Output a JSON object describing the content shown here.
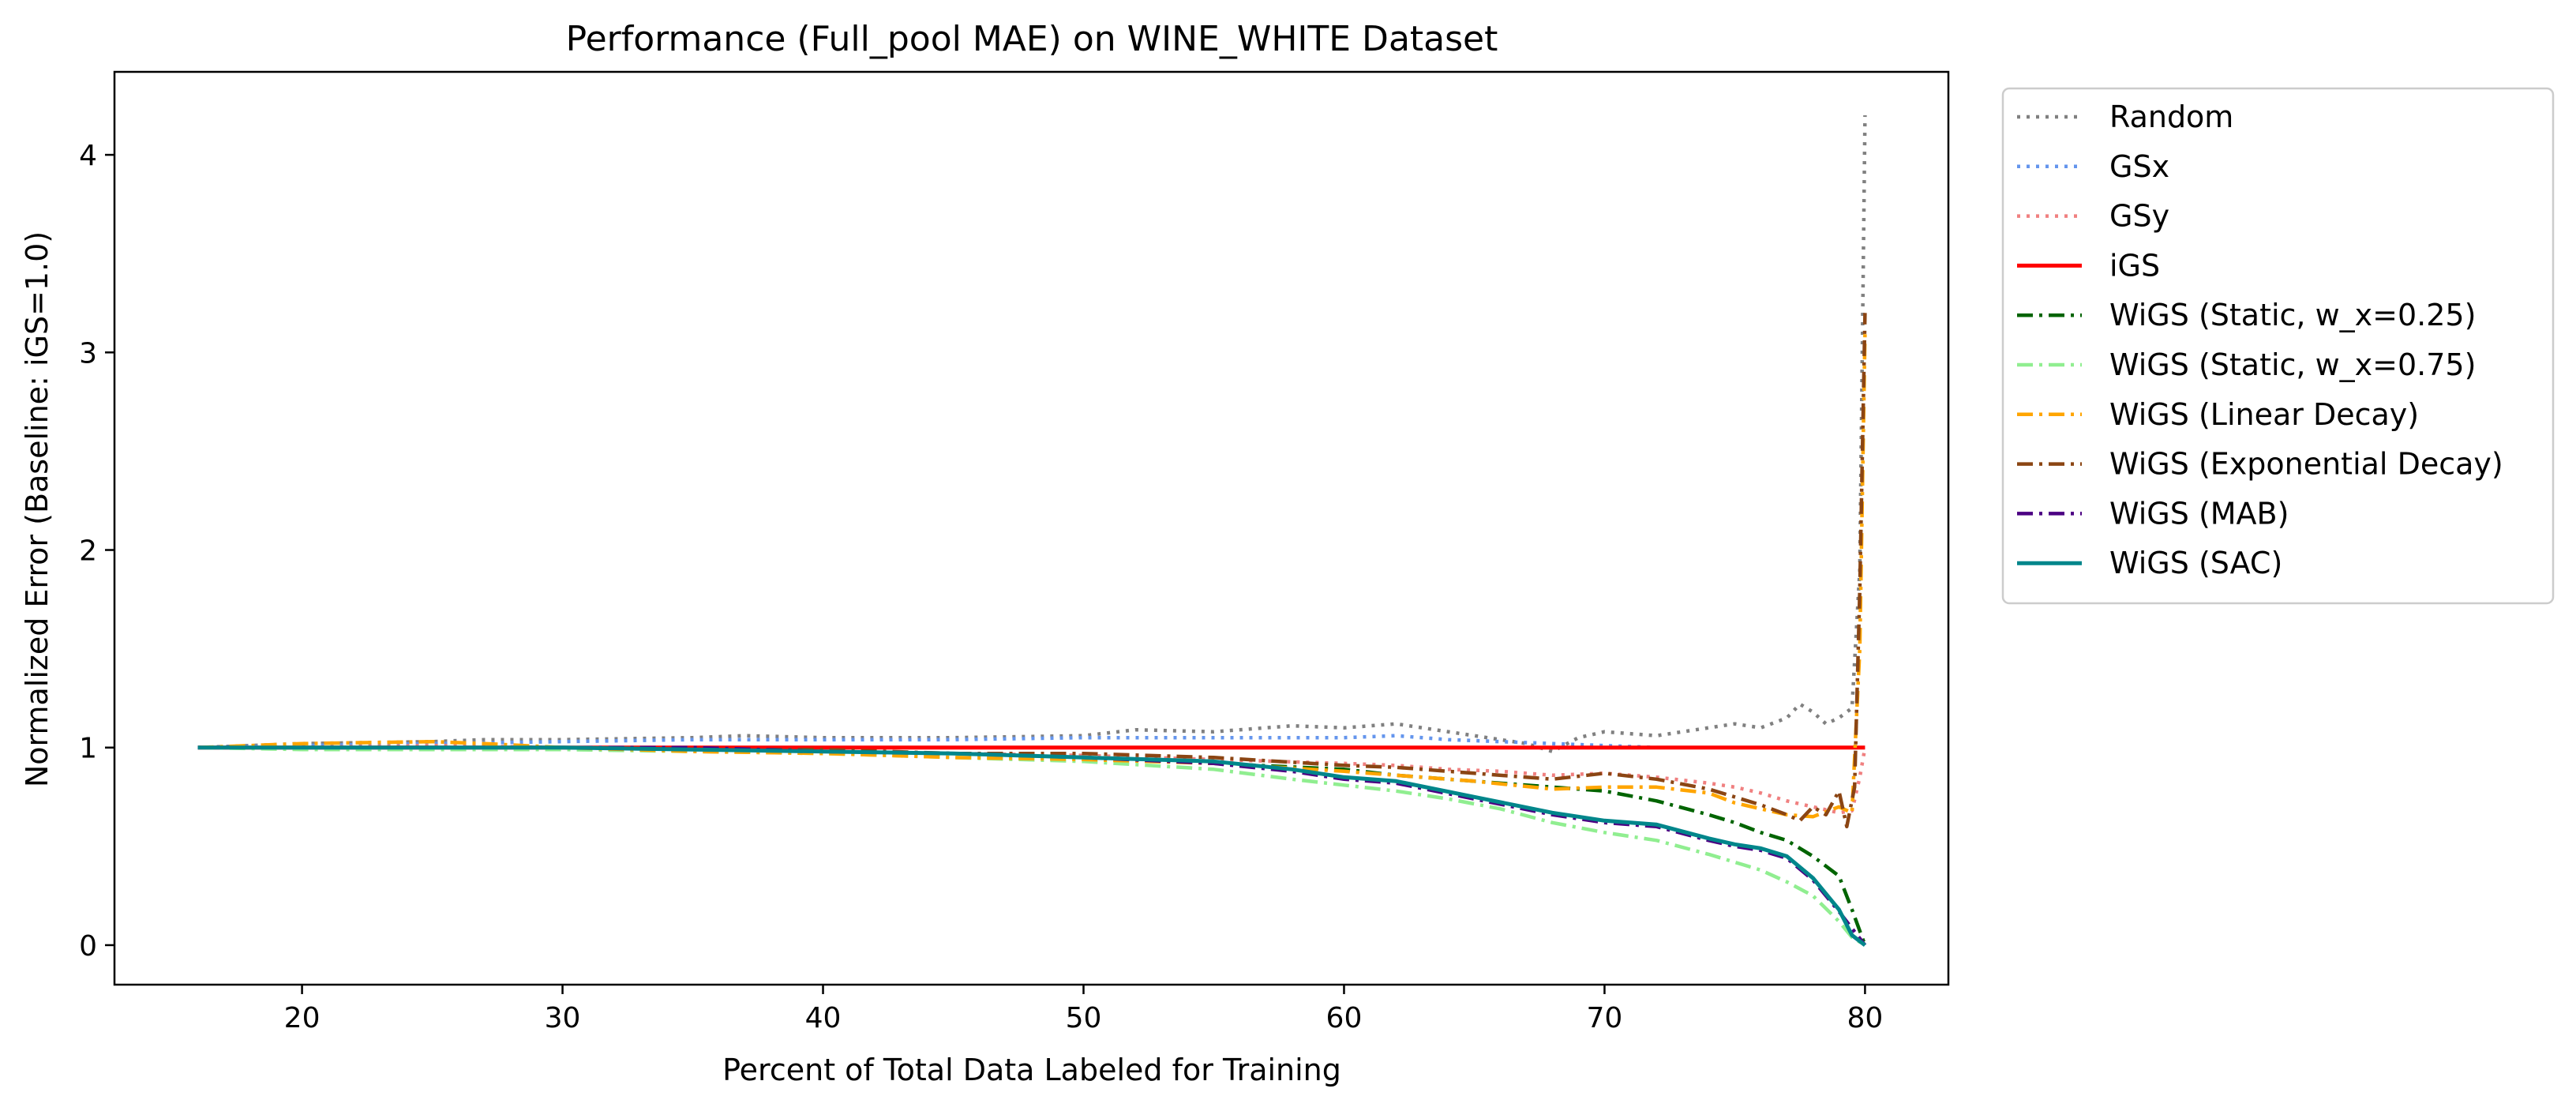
{
  "chart_data": {
    "type": "line",
    "title": "Performance (Full_pool MAE) on WINE_WHITE Dataset",
    "xlabel": "Percent of Total Data Labeled for Training",
    "ylabel": "Normalized Error (Baseline: iGS=1.0)",
    "xlim": [
      12.8,
      83.2
    ],
    "ylim": [
      -0.2,
      4.42
    ],
    "xticks": [
      20,
      30,
      40,
      50,
      60,
      70,
      80
    ],
    "yticks": [
      0,
      1,
      2,
      3,
      4
    ],
    "grid": false,
    "legend_position": "outside upper right",
    "series": [
      {
        "name": "Random",
        "color": "#808080",
        "dash": "dotted",
        "points": [
          [
            16,
            1.0
          ],
          [
            18,
            1.01
          ],
          [
            20,
            1.02
          ],
          [
            25,
            1.03
          ],
          [
            27,
            1.04
          ],
          [
            30,
            1.04
          ],
          [
            35,
            1.05
          ],
          [
            37,
            1.06
          ],
          [
            40,
            1.05
          ],
          [
            45,
            1.05
          ],
          [
            50,
            1.06
          ],
          [
            52,
            1.09
          ],
          [
            55,
            1.08
          ],
          [
            57,
            1.1
          ],
          [
            58,
            1.11
          ],
          [
            60,
            1.1
          ],
          [
            62,
            1.12
          ],
          [
            63,
            1.1
          ],
          [
            65,
            1.06
          ],
          [
            67,
            1.02
          ],
          [
            68,
            0.98
          ],
          [
            69,
            1.05
          ],
          [
            70,
            1.08
          ],
          [
            72,
            1.06
          ],
          [
            74,
            1.1
          ],
          [
            75,
            1.12
          ],
          [
            76,
            1.1
          ],
          [
            77,
            1.15
          ],
          [
            77.5,
            1.22
          ],
          [
            78,
            1.18
          ],
          [
            78.5,
            1.12
          ],
          [
            79,
            1.15
          ],
          [
            79.5,
            1.2
          ],
          [
            79.8,
            1.9
          ],
          [
            80,
            4.2
          ]
        ]
      },
      {
        "name": "GSx",
        "color": "#6495ED",
        "dash": "dotted",
        "points": [
          [
            16,
            1.0
          ],
          [
            20,
            1.01
          ],
          [
            25,
            1.02
          ],
          [
            30,
            1.03
          ],
          [
            35,
            1.04
          ],
          [
            40,
            1.04
          ],
          [
            45,
            1.04
          ],
          [
            50,
            1.05
          ],
          [
            55,
            1.05
          ],
          [
            60,
            1.05
          ],
          [
            62,
            1.06
          ],
          [
            64,
            1.04
          ],
          [
            66,
            1.03
          ],
          [
            68,
            1.02
          ],
          [
            70,
            1.01
          ],
          [
            72,
            1.0
          ],
          [
            75,
            1.0
          ],
          [
            78,
            1.0
          ],
          [
            80,
            1.0
          ]
        ]
      },
      {
        "name": "GSy",
        "color": "#F08080",
        "dash": "dotted",
        "points": [
          [
            16,
            1.0
          ],
          [
            20,
            1.0
          ],
          [
            25,
            1.01
          ],
          [
            30,
            1.0
          ],
          [
            35,
            0.99
          ],
          [
            40,
            0.98
          ],
          [
            45,
            0.97
          ],
          [
            50,
            0.96
          ],
          [
            55,
            0.94
          ],
          [
            60,
            0.92
          ],
          [
            62,
            0.91
          ],
          [
            64,
            0.89
          ],
          [
            66,
            0.88
          ],
          [
            68,
            0.86
          ],
          [
            70,
            0.87
          ],
          [
            72,
            0.85
          ],
          [
            74,
            0.82
          ],
          [
            75,
            0.8
          ],
          [
            76,
            0.77
          ],
          [
            77,
            0.73
          ],
          [
            78,
            0.7
          ],
          [
            79,
            0.67
          ],
          [
            79.5,
            0.68
          ],
          [
            79.8,
            0.85
          ],
          [
            80,
            1.0
          ]
        ]
      },
      {
        "name": "iGS",
        "color": "#FF0000",
        "dash": "solid",
        "points": [
          [
            16,
            1.0
          ],
          [
            80,
            1.0
          ]
        ]
      },
      {
        "name": "WiGS (Static, w_x=0.25)",
        "color": "#006400",
        "dash": "dashdot",
        "points": [
          [
            16,
            1.0
          ],
          [
            20,
            1.0
          ],
          [
            25,
            1.0
          ],
          [
            30,
            1.0
          ],
          [
            35,
            0.99
          ],
          [
            40,
            0.98
          ],
          [
            45,
            0.97
          ],
          [
            50,
            0.95
          ],
          [
            55,
            0.92
          ],
          [
            60,
            0.89
          ],
          [
            62,
            0.86
          ],
          [
            65,
            0.83
          ],
          [
            68,
            0.8
          ],
          [
            70,
            0.78
          ],
          [
            72,
            0.73
          ],
          [
            74,
            0.66
          ],
          [
            75,
            0.62
          ],
          [
            76,
            0.57
          ],
          [
            77,
            0.53
          ],
          [
            78,
            0.45
          ],
          [
            79,
            0.35
          ],
          [
            79.5,
            0.18
          ],
          [
            80,
            0.0
          ]
        ]
      },
      {
        "name": "WiGS (Static, w_x=0.75)",
        "color": "#90EE90",
        "dash": "dashdot",
        "points": [
          [
            16,
            1.0
          ],
          [
            20,
            0.99
          ],
          [
            25,
            0.99
          ],
          [
            30,
            0.99
          ],
          [
            35,
            0.98
          ],
          [
            40,
            0.97
          ],
          [
            45,
            0.95
          ],
          [
            50,
            0.93
          ],
          [
            55,
            0.89
          ],
          [
            58,
            0.84
          ],
          [
            60,
            0.81
          ],
          [
            62,
            0.78
          ],
          [
            64,
            0.74
          ],
          [
            66,
            0.69
          ],
          [
            68,
            0.62
          ],
          [
            70,
            0.57
          ],
          [
            72,
            0.53
          ],
          [
            74,
            0.46
          ],
          [
            75,
            0.42
          ],
          [
            76,
            0.38
          ],
          [
            77,
            0.32
          ],
          [
            78,
            0.25
          ],
          [
            79,
            0.12
          ],
          [
            79.5,
            0.04
          ],
          [
            80,
            0.0
          ]
        ]
      },
      {
        "name": "WiGS (Linear Decay)",
        "color": "#FFA500",
        "dash": "dashdot",
        "points": [
          [
            16,
            1.0
          ],
          [
            18,
            1.01
          ],
          [
            20,
            1.02
          ],
          [
            25,
            1.03
          ],
          [
            27,
            1.02
          ],
          [
            30,
            1.0
          ],
          [
            35,
            0.98
          ],
          [
            40,
            0.97
          ],
          [
            45,
            0.95
          ],
          [
            50,
            0.94
          ],
          [
            55,
            0.92
          ],
          [
            60,
            0.88
          ],
          [
            62,
            0.86
          ],
          [
            65,
            0.83
          ],
          [
            68,
            0.79
          ],
          [
            70,
            0.8
          ],
          [
            72,
            0.8
          ],
          [
            74,
            0.77
          ],
          [
            75,
            0.72
          ],
          [
            76,
            0.69
          ],
          [
            77,
            0.66
          ],
          [
            78,
            0.65
          ],
          [
            79,
            0.7
          ],
          [
            79.5,
            0.67
          ],
          [
            79.8,
            1.5
          ],
          [
            80,
            3.1
          ]
        ]
      },
      {
        "name": "WiGS (Exponential Decay)",
        "color": "#8B4513",
        "dash": "dashdot",
        "points": [
          [
            16,
            1.0
          ],
          [
            20,
            1.0
          ],
          [
            25,
            1.0
          ],
          [
            30,
            1.0
          ],
          [
            35,
            0.99
          ],
          [
            40,
            0.99
          ],
          [
            45,
            0.97
          ],
          [
            50,
            0.97
          ],
          [
            55,
            0.95
          ],
          [
            60,
            0.91
          ],
          [
            62,
            0.9
          ],
          [
            65,
            0.87
          ],
          [
            68,
            0.84
          ],
          [
            70,
            0.87
          ],
          [
            72,
            0.84
          ],
          [
            74,
            0.79
          ],
          [
            75,
            0.75
          ],
          [
            76,
            0.71
          ],
          [
            77,
            0.66
          ],
          [
            77.5,
            0.63
          ],
          [
            78,
            0.7
          ],
          [
            78.5,
            0.66
          ],
          [
            79,
            0.78
          ],
          [
            79.3,
            0.6
          ],
          [
            79.6,
            0.8
          ],
          [
            79.8,
            1.8
          ],
          [
            80,
            3.2
          ]
        ]
      },
      {
        "name": "WiGS (MAB)",
        "color": "#4B0082",
        "dash": "dashdot",
        "points": [
          [
            16,
            1.0
          ],
          [
            20,
            1.0
          ],
          [
            25,
            1.0
          ],
          [
            30,
            1.0
          ],
          [
            35,
            1.0
          ],
          [
            40,
            0.98
          ],
          [
            45,
            0.97
          ],
          [
            50,
            0.95
          ],
          [
            55,
            0.92
          ],
          [
            58,
            0.88
          ],
          [
            60,
            0.84
          ],
          [
            62,
            0.82
          ],
          [
            65,
            0.74
          ],
          [
            68,
            0.66
          ],
          [
            70,
            0.62
          ],
          [
            72,
            0.6
          ],
          [
            74,
            0.53
          ],
          [
            75,
            0.5
          ],
          [
            76,
            0.48
          ],
          [
            77,
            0.44
          ],
          [
            78,
            0.33
          ],
          [
            79,
            0.17
          ],
          [
            80,
            0.0
          ]
        ]
      },
      {
        "name": "WiGS (SAC)",
        "color": "#00868B",
        "dash": "solid",
        "points": [
          [
            16,
            1.0
          ],
          [
            20,
            1.0
          ],
          [
            25,
            1.0
          ],
          [
            30,
            1.0
          ],
          [
            35,
            0.99
          ],
          [
            40,
            0.98
          ],
          [
            45,
            0.97
          ],
          [
            50,
            0.95
          ],
          [
            55,
            0.93
          ],
          [
            58,
            0.89
          ],
          [
            60,
            0.85
          ],
          [
            62,
            0.83
          ],
          [
            65,
            0.75
          ],
          [
            68,
            0.67
          ],
          [
            70,
            0.63
          ],
          [
            72,
            0.61
          ],
          [
            74,
            0.54
          ],
          [
            75,
            0.51
          ],
          [
            76,
            0.49
          ],
          [
            77,
            0.45
          ],
          [
            78,
            0.34
          ],
          [
            79,
            0.18
          ],
          [
            79.5,
            0.05
          ],
          [
            80,
            0.0
          ]
        ]
      }
    ]
  }
}
